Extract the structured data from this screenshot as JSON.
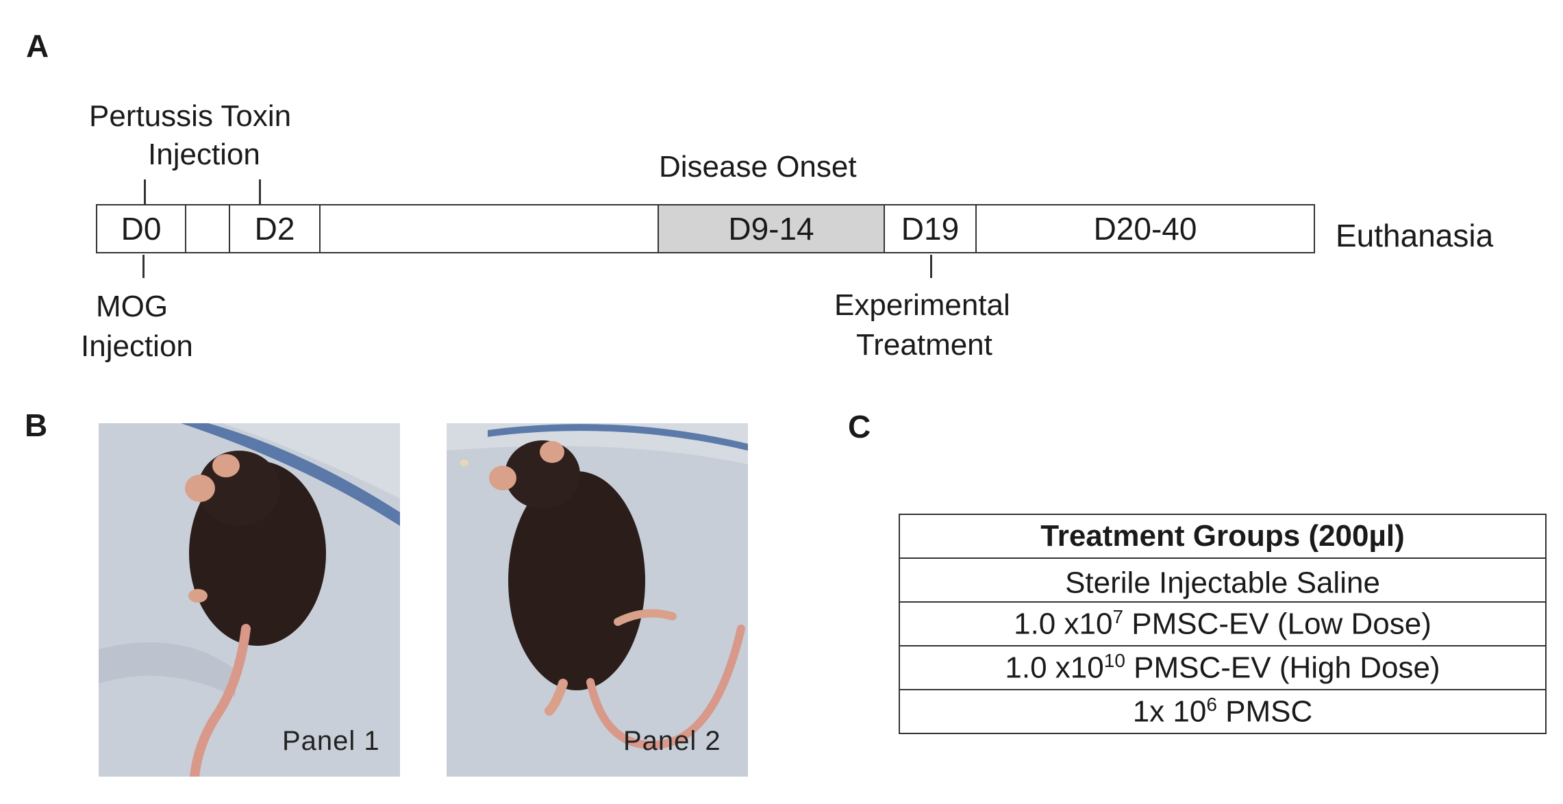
{
  "panel_a": {
    "letter": "A",
    "pertussis_label_line1": "Pertussis Toxin",
    "pertussis_label_line2": "Injection",
    "disease_onset_label": "Disease Onset",
    "mog_label_line1": "MOG",
    "mog_label_line2": "Injection",
    "experimental_label_line1": "Experimental",
    "experimental_label_line2": "Treatment",
    "euthanasia_label": "Euthanasia",
    "segments": [
      "D0",
      "",
      "D2",
      "",
      "D9-14",
      "D19",
      "D20-40"
    ],
    "highlight_color": "#d3d3d3"
  },
  "panel_b": {
    "letter": "B",
    "photo1_caption": "Panel 1",
    "photo2_caption": "Panel 2"
  },
  "panel_c": {
    "letter": "C",
    "table_header": "Treatment Groups (200µl)",
    "rows": [
      {
        "pre": "Sterile Injectable Saline",
        "sup": "",
        "post": ""
      },
      {
        "pre": "1.0 x10",
        "sup": "7",
        "post": " PMSC-EV (Low Dose)"
      },
      {
        "pre": "1.0 x10",
        "sup": "10",
        "post": " PMSC-EV (High Dose)"
      },
      {
        "pre": "1x 10",
        "sup": "6",
        "post": " PMSC"
      }
    ]
  }
}
